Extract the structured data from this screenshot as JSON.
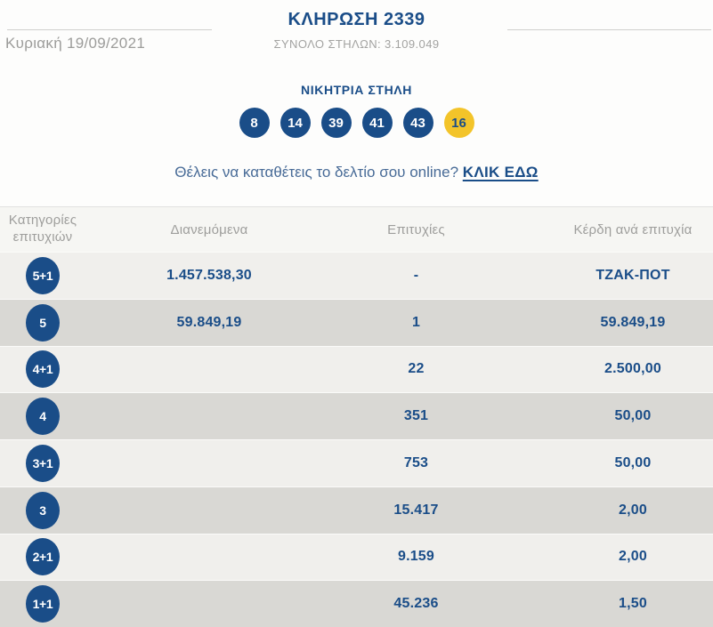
{
  "colors": {
    "accent": "#1a4d88",
    "joker_ball": "#f3c42a",
    "question_text": "#486b97"
  },
  "header": {
    "title": "ΚΛΗΡΩΣΗ 2339",
    "date": "Κυριακή 19/09/2021",
    "total_columns_label": "ΣΥΝΟΛΟ ΣΤΗΛΩΝ: 3.109.049"
  },
  "winning": {
    "title": "ΝΙΚΗΤΡΙΑ ΣΤΗΛΗ",
    "numbers": [
      "8",
      "14",
      "39",
      "41",
      "43"
    ],
    "joker": "16"
  },
  "cta": {
    "question": "Θέλεις να καταθέτεις το δελτίο σου online?",
    "link_label": "ΚΛΙΚ ΕΔΩ"
  },
  "table": {
    "headers": [
      "Κατηγορίες επιτυχιών",
      "Διανεμόμενα",
      "Επιτυχίες",
      "Κέρδη ανά επιτυχία"
    ],
    "rows": [
      {
        "category": "5+1",
        "distributed": "1.457.538,30",
        "winners": "-",
        "prize": "ΤΖΑΚ-ΠΟΤ"
      },
      {
        "category": "5",
        "distributed": "59.849,19",
        "winners": "1",
        "prize": "59.849,19"
      },
      {
        "category": "4+1",
        "distributed": "",
        "winners": "22",
        "prize": "2.500,00"
      },
      {
        "category": "4",
        "distributed": "",
        "winners": "351",
        "prize": "50,00"
      },
      {
        "category": "3+1",
        "distributed": "",
        "winners": "753",
        "prize": "50,00"
      },
      {
        "category": "3",
        "distributed": "",
        "winners": "15.417",
        "prize": "2,00"
      },
      {
        "category": "2+1",
        "distributed": "",
        "winners": "9.159",
        "prize": "2,00"
      },
      {
        "category": "1+1",
        "distributed": "",
        "winners": "45.236",
        "prize": "1,50"
      }
    ]
  }
}
